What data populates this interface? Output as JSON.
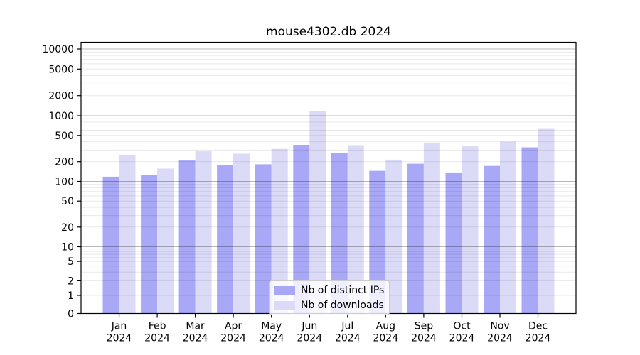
{
  "chart_data": {
    "type": "bar",
    "title": "mouse4302.db 2024",
    "categories": [
      {
        "month": "Jan",
        "year": "2024"
      },
      {
        "month": "Feb",
        "year": "2024"
      },
      {
        "month": "Mar",
        "year": "2024"
      },
      {
        "month": "Apr",
        "year": "2024"
      },
      {
        "month": "May",
        "year": "2024"
      },
      {
        "month": "Jun",
        "year": "2024"
      },
      {
        "month": "Jul",
        "year": "2024"
      },
      {
        "month": "Aug",
        "year": "2024"
      },
      {
        "month": "Sep",
        "year": "2024"
      },
      {
        "month": "Oct",
        "year": "2024"
      },
      {
        "month": "Nov",
        "year": "2024"
      },
      {
        "month": "Dec",
        "year": "2024"
      }
    ],
    "series": [
      {
        "name": "Nb of distinct IPs",
        "color": "#a8a8f6",
        "values": [
          118,
          125,
          208,
          176,
          182,
          360,
          272,
          145,
          186,
          137,
          172,
          330
        ]
      },
      {
        "name": "Nb of downloads",
        "color": "#dbdbf8",
        "values": [
          252,
          157,
          287,
          264,
          313,
          1180,
          357,
          214,
          380,
          344,
          402,
          645
        ]
      }
    ],
    "y_ticks": [
      0,
      1,
      2,
      5,
      10,
      20,
      50,
      100,
      200,
      500,
      1000,
      2000,
      5000,
      10000
    ],
    "y_scale": "log-like with 1-2-5 labeled ticks, linear segment 0-1",
    "ylim": [
      0,
      12500
    ],
    "xlabel": "",
    "ylabel": "",
    "grid": true,
    "grid_on_top_of_bars": true,
    "legend_position": "bottom-center",
    "colors": {
      "major_grid": "rgba(0,0,0,0.28)",
      "minor_grid": "rgba(0,0,0,0.09)",
      "axis": "#000000",
      "background": "#ffffff"
    }
  }
}
